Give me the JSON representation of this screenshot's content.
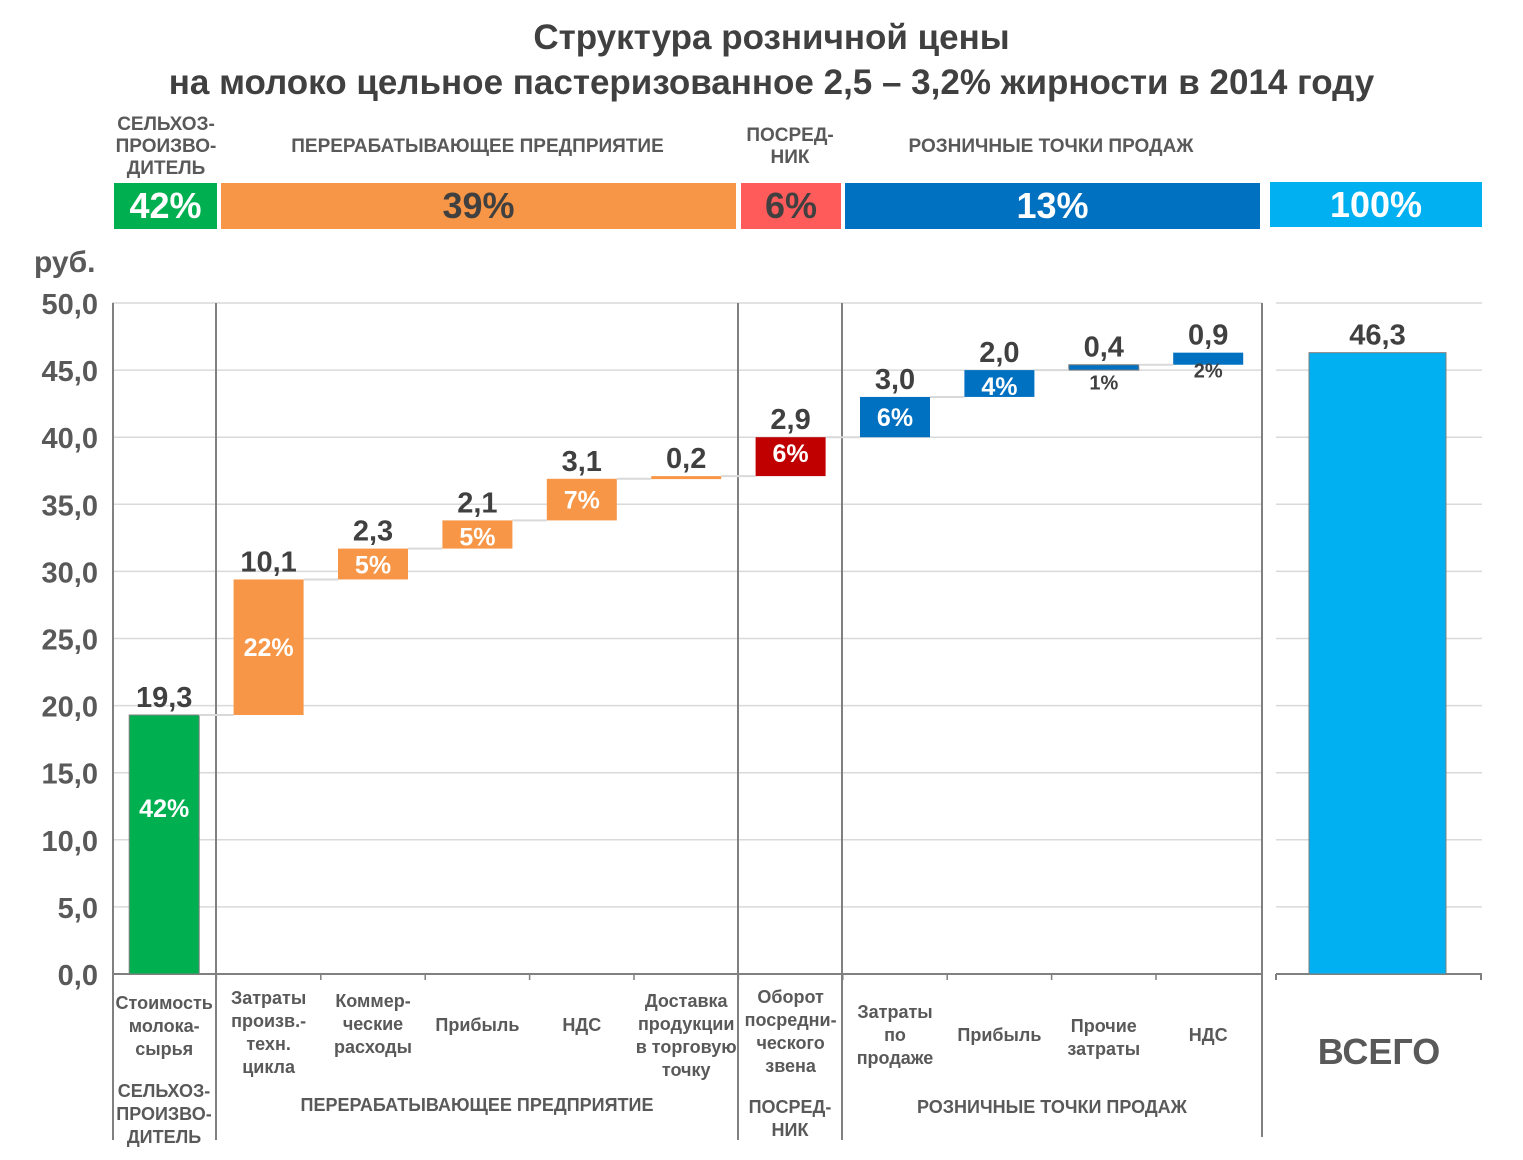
{
  "title": {
    "line1": "Структура  розничной цены",
    "line2": "на молоко цельное пастеризованное 2,5 – 3,2% жирности в 2014 году"
  },
  "top_headers": {
    "producer": "СЕЛЬХОЗ-\nПРОИЗВО-\nДИТЕЛЬ",
    "processor": "ПЕРЕРАБАТЫВАЮЩЕЕ ПРЕДПРИЯТИЕ",
    "intermediary": "ПОСРЕД-\nНИК",
    "retail": "РОЗНИЧНЫЕ ТОЧКИ ПРОДАЖ"
  },
  "bands": {
    "producer": "42%",
    "processor": "39%",
    "intermediary": "6%",
    "retail": "13%",
    "total": "100%"
  },
  "colors": {
    "green": "#00B050",
    "orange": "#F79646",
    "light_red": "#FF5B5B",
    "dark_red": "#C00000",
    "blue": "#0070C0",
    "light_blue": "#00B0F0",
    "text": "#404040",
    "grid": "#D9D9D9"
  },
  "chart_data": {
    "type": "waterfall",
    "title": "Структура розничной цены на молоко цельное пастеризованное 2,5 – 3,2% жирности в 2014 году",
    "ylabel": "руб.",
    "ylim": [
      0,
      50
    ],
    "yticks": [
      "0,0",
      "5,0",
      "10,0",
      "15,0",
      "20,0",
      "25,0",
      "30,0",
      "35,0",
      "40,0",
      "45,0",
      "50,0"
    ],
    "grid": true,
    "categories": [
      "Стоимость\nмолока-\nсырья",
      "Затраты\nпроизв.-\nтехн.\nцикла",
      "Коммер-\nческие\nрасходы",
      "Прибыль",
      "НДС",
      "Доставка\nпродукции\nв торговую\nточку",
      "Оборот\nпосредни-\nческого\nзвена",
      "Затраты\nпо\nпродаже",
      "Прибыль",
      "Прочие\nзатраты",
      "НДС"
    ],
    "values": [
      19.3,
      10.1,
      2.3,
      2.1,
      3.1,
      0.2,
      2.9,
      3.0,
      2.0,
      0.4,
      0.9
    ],
    "value_labels": [
      "19,3",
      "10,1",
      "2,3",
      "2,1",
      "3,1",
      "0,2",
      "2,9",
      "3,0",
      "2,0",
      "0,4",
      "0,9"
    ],
    "percent_labels": [
      "42%",
      "22%",
      "5%",
      "5%",
      "7%",
      "",
      "6%",
      "6%",
      "4%",
      "1%",
      "2%"
    ],
    "bar_colors": [
      "green",
      "orange",
      "orange",
      "orange",
      "orange",
      "orange",
      "dark_red",
      "blue",
      "blue",
      "blue",
      "blue"
    ],
    "groups": [
      {
        "label": "СЕЛЬХОЗ-\nПРОИЗВО-\nДИТЕЛЬ",
        "members": [
          0
        ]
      },
      {
        "label": "ПЕРЕРАБАТЫВАЮЩЕЕ ПРЕДПРИЯТИЕ",
        "members": [
          1,
          2,
          3,
          4,
          5
        ]
      },
      {
        "label": "ПОСРЕД-\nНИК",
        "members": [
          6
        ]
      },
      {
        "label": "РОЗНИЧНЫЕ ТОЧКИ ПРОДАЖ",
        "members": [
          7,
          8,
          9,
          10
        ]
      }
    ],
    "total": {
      "category": "ВСЕГО",
      "value": 46.3,
      "value_label": "46,3",
      "color": "light_blue"
    }
  }
}
